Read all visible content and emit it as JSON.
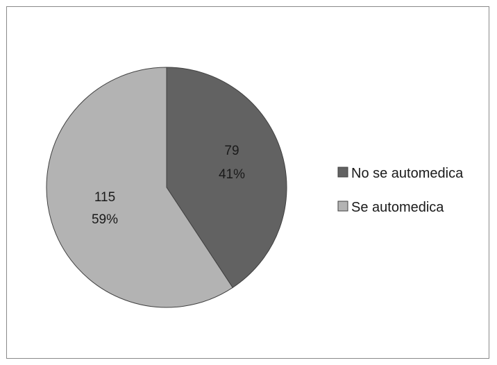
{
  "chart_data": {
    "type": "pie",
    "title": "",
    "slices": [
      {
        "name": "No se automedica",
        "value": 79,
        "percent": "41%",
        "color": "#626262"
      },
      {
        "name": "Se automedica",
        "value": 115,
        "percent": "59%",
        "color": "#b3b3b3"
      }
    ],
    "start_angle_deg": 0,
    "direction": "clockwise",
    "slice_border_color": "#404040",
    "legend": {
      "placement": "right",
      "entries": [
        "No se automedica",
        "Se automedica"
      ]
    }
  }
}
